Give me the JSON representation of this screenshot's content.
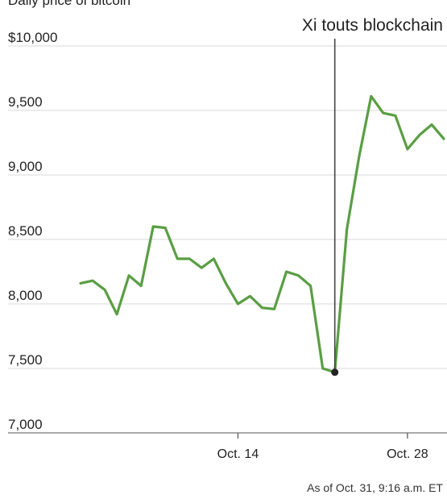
{
  "chart_data": {
    "type": "line",
    "subtitle": "Daily price of bitcoin",
    "ylim": [
      7000,
      10000
    ],
    "yticks": [
      10000,
      9500,
      9000,
      8500,
      8000,
      7500,
      7000
    ],
    "ytick_labels": [
      "$10,000",
      "9,500",
      "9,000",
      "8,500",
      "8,000",
      "7,500",
      "7,000"
    ],
    "xlim": [
      1,
      31
    ],
    "xticks": [
      14,
      28
    ],
    "xtick_labels": [
      "Oct. 14",
      "Oct. 28"
    ],
    "grid": true,
    "series": [
      {
        "color": "#5a9e44",
        "x": [
          1,
          2,
          3,
          4,
          5,
          6,
          7,
          8,
          9,
          10,
          11,
          12,
          13,
          14,
          15,
          16,
          17,
          18,
          19,
          20,
          21,
          22,
          23,
          24,
          25,
          26,
          27,
          28,
          29,
          30,
          31
        ],
        "y": [
          8160,
          8180,
          8110,
          7920,
          8220,
          8140,
          8600,
          8590,
          8350,
          8350,
          8280,
          8350,
          8160,
          8000,
          8060,
          7970,
          7960,
          8250,
          8220,
          8140,
          7500,
          7470,
          8580,
          9140,
          9610,
          9480,
          9460,
          9200,
          9310,
          9390,
          9280
        ]
      }
    ],
    "annotation": {
      "text": "Xi touts blockchain",
      "x": 22,
      "y": 7470
    },
    "footnote": "As of Oct. 31, 9:16 a.m. ET"
  }
}
